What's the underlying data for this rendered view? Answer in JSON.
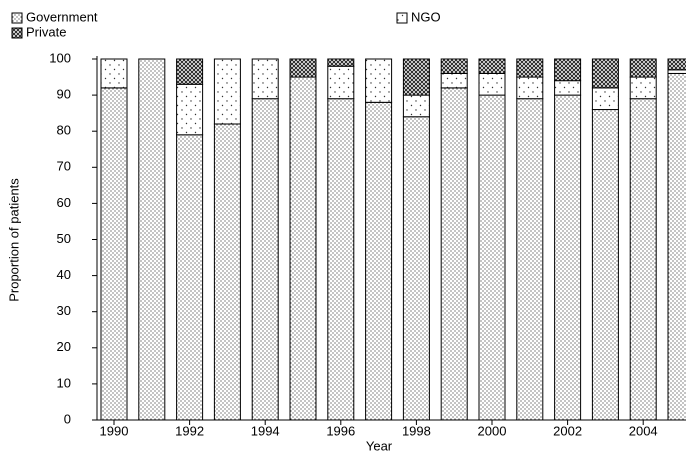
{
  "chart_data": {
    "type": "stacked_bar",
    "categories": [
      "1990",
      null,
      "1992",
      null,
      "1994",
      null,
      "1996",
      null,
      "1998",
      null,
      "2000",
      null,
      "2002",
      null,
      "2004",
      null
    ],
    "series": [
      {
        "name": "Government",
        "pattern": "dense-dots",
        "values": [
          92,
          100,
          79,
          82,
          89,
          95,
          89,
          88,
          84,
          92,
          90,
          89,
          90,
          86,
          89,
          96
        ]
      },
      {
        "name": "NGO",
        "pattern": "sparse-dots",
        "values": [
          8,
          0,
          14,
          18,
          11,
          0,
          9,
          12,
          6,
          4,
          6,
          6,
          4,
          6,
          6,
          1
        ]
      },
      {
        "name": "Private",
        "pattern": "crosshatch",
        "values": [
          0,
          0,
          7,
          0,
          0,
          5,
          2,
          0,
          10,
          4,
          4,
          5,
          6,
          8,
          5,
          3
        ]
      }
    ],
    "ylabel": "Proportion of patients",
    "xlabel": "Year",
    "ylim": [
      0,
      100
    ],
    "yticks": [
      0,
      10,
      20,
      30,
      40,
      50,
      60,
      70,
      80,
      90,
      100
    ]
  }
}
